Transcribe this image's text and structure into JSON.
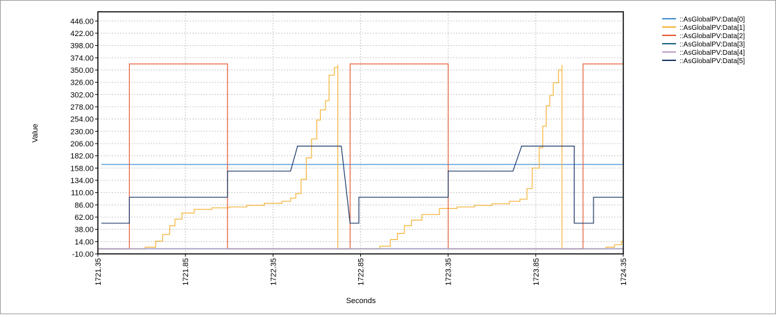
{
  "chart_data": {
    "type": "line",
    "xlabel": "Seconds",
    "ylabel": "Value",
    "xlim": [
      1721.35,
      1724.35
    ],
    "ylim": [
      -10,
      464
    ],
    "x_ticks": [
      "1721.35",
      "1721.85",
      "1722.35",
      "1722.85",
      "1723.35",
      "1723.85",
      "1724.35"
    ],
    "y_ticks": [
      "-10.00",
      "14.00",
      "38.00",
      "62.00",
      "86.00",
      "110.00",
      "134.00",
      "158.00",
      "182.00",
      "206.00",
      "230.00",
      "254.00",
      "278.00",
      "302.00",
      "326.00",
      "350.00",
      "374.00",
      "398.00",
      "422.00",
      "446.00"
    ],
    "grid": true,
    "legend_position": "top-right",
    "series": [
      {
        "name": "::AsGlobalPV:Data[0]",
        "color": "#4a90d0",
        "step": true,
        "points": [
          [
            1721.37,
            165
          ],
          [
            1724.35,
            322
          ]
        ]
      },
      {
        "name": "::AsGlobalPV:Data[1]",
        "color": "#f5b53d",
        "step": true,
        "points": [
          [
            1721.35,
            0
          ],
          [
            1721.57,
            0
          ],
          [
            1721.62,
            3
          ],
          [
            1721.68,
            15
          ],
          [
            1721.72,
            28
          ],
          [
            1721.76,
            45
          ],
          [
            1721.79,
            58
          ],
          [
            1721.83,
            70
          ],
          [
            1721.9,
            77
          ],
          [
            1722.0,
            80
          ],
          [
            1722.1,
            82
          ],
          [
            1722.2,
            85
          ],
          [
            1722.3,
            89
          ],
          [
            1722.4,
            93
          ],
          [
            1722.45,
            99
          ],
          [
            1722.48,
            108
          ],
          [
            1722.51,
            136
          ],
          [
            1722.54,
            178
          ],
          [
            1722.57,
            215
          ],
          [
            1722.6,
            252
          ],
          [
            1722.62,
            272
          ],
          [
            1722.65,
            290
          ],
          [
            1722.67,
            340
          ],
          [
            1722.7,
            355
          ],
          [
            1722.72,
            360
          ],
          [
            1722.72,
            0
          ],
          [
            1722.9,
            0
          ],
          [
            1722.96,
            5
          ],
          [
            1723.02,
            18
          ],
          [
            1723.06,
            30
          ],
          [
            1723.1,
            45
          ],
          [
            1723.14,
            56
          ],
          [
            1723.2,
            67
          ],
          [
            1723.3,
            79
          ],
          [
            1723.4,
            82
          ],
          [
            1723.5,
            85
          ],
          [
            1723.6,
            88
          ],
          [
            1723.7,
            93
          ],
          [
            1723.76,
            97
          ],
          [
            1723.8,
            118
          ],
          [
            1723.83,
            158
          ],
          [
            1723.87,
            198
          ],
          [
            1723.89,
            240
          ],
          [
            1723.91,
            280
          ],
          [
            1723.93,
            300
          ],
          [
            1723.95,
            325
          ],
          [
            1723.98,
            350
          ],
          [
            1724.0,
            360
          ],
          [
            1724.0,
            0
          ],
          [
            1724.2,
            0
          ],
          [
            1724.25,
            3
          ],
          [
            1724.3,
            8
          ],
          [
            1724.34,
            14
          ],
          [
            1724.35,
            18
          ]
        ]
      },
      {
        "name": "::AsGlobalPV:Data[2]",
        "color": "#e8603a",
        "step": true,
        "points": [
          [
            1721.35,
            0
          ],
          [
            1721.53,
            0
          ],
          [
            1721.53,
            362
          ],
          [
            1722.09,
            362
          ],
          [
            1722.09,
            0
          ],
          [
            1722.79,
            0
          ],
          [
            1722.79,
            362
          ],
          [
            1723.35,
            362
          ],
          [
            1723.35,
            0
          ],
          [
            1724.12,
            0
          ],
          [
            1724.12,
            362
          ],
          [
            1724.35,
            362
          ]
        ]
      },
      {
        "name": "::AsGlobalPV:Data[3]",
        "color": "#24688a",
        "step": true,
        "points": [
          [
            1721.35,
            0
          ],
          [
            1724.35,
            0
          ]
        ]
      },
      {
        "name": "::AsGlobalPV:Data[4]",
        "color": "#c0a0c8",
        "step": true,
        "points": [
          [
            1721.35,
            0.5
          ],
          [
            1724.35,
            0.5
          ]
        ]
      },
      {
        "name": "::AsGlobalPV:Data[5]",
        "color": "#1f3d6b",
        "step": false,
        "points": [
          [
            1721.37,
            50
          ],
          [
            1721.53,
            50
          ],
          [
            1721.53,
            101
          ],
          [
            1722.09,
            101
          ],
          [
            1722.09,
            152
          ],
          [
            1722.45,
            152
          ],
          [
            1722.49,
            201
          ],
          [
            1722.74,
            201
          ],
          [
            1722.79,
            50
          ],
          [
            1722.84,
            50
          ],
          [
            1722.84,
            101
          ],
          [
            1723.35,
            101
          ],
          [
            1723.35,
            152
          ],
          [
            1723.72,
            152
          ],
          [
            1723.77,
            201
          ],
          [
            1724.07,
            201
          ],
          [
            1724.07,
            50
          ],
          [
            1724.18,
            50
          ],
          [
            1724.18,
            101
          ],
          [
            1724.35,
            101
          ]
        ]
      }
    ]
  }
}
